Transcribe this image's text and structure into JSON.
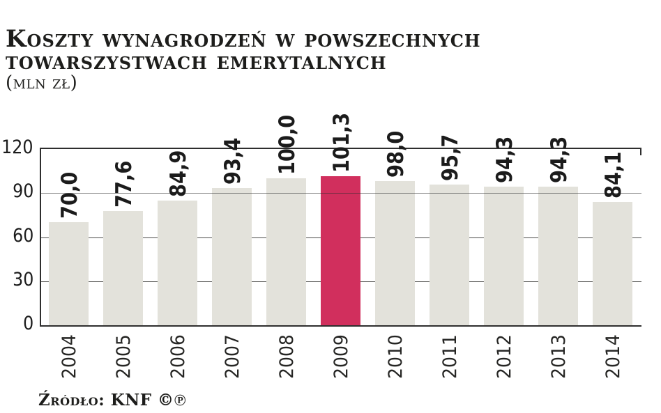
{
  "header": {
    "title_line1": "Koszty wynagrodzeń w powszechnych",
    "title_line2": "towarszystwach emerytalnych",
    "unit_label": "(mln zł)"
  },
  "chart_data": {
    "type": "bar",
    "title": "Koszty wynagrodzeń w powszechnych towarszystwach emerytalnych (mln zł)",
    "categories": [
      "2004",
      "2005",
      "2006",
      "2007",
      "2008",
      "2009",
      "2010",
      "2011",
      "2012",
      "2013",
      "2014"
    ],
    "values": [
      70.0,
      77.6,
      84.9,
      93.4,
      100.0,
      101.3,
      98.0,
      95.7,
      94.3,
      94.3,
      84.1
    ],
    "value_labels": [
      "70,0",
      "77,6",
      "84,9",
      "93,4",
      "100,0",
      "101,3",
      "98,0",
      "95,7",
      "94,3",
      "94,3",
      "84,1"
    ],
    "highlight_index": 5,
    "highlight_category": "2009",
    "ylim": [
      0,
      120
    ],
    "yticks": [
      0,
      30,
      60,
      90,
      120
    ],
    "grid": "horizontal",
    "legend": "none",
    "bar_color": "#e3e2db",
    "highlight_color": "#d12f5d",
    "axis_color": "#2e2e2e",
    "source": "Źródło: KNF ©℗"
  }
}
